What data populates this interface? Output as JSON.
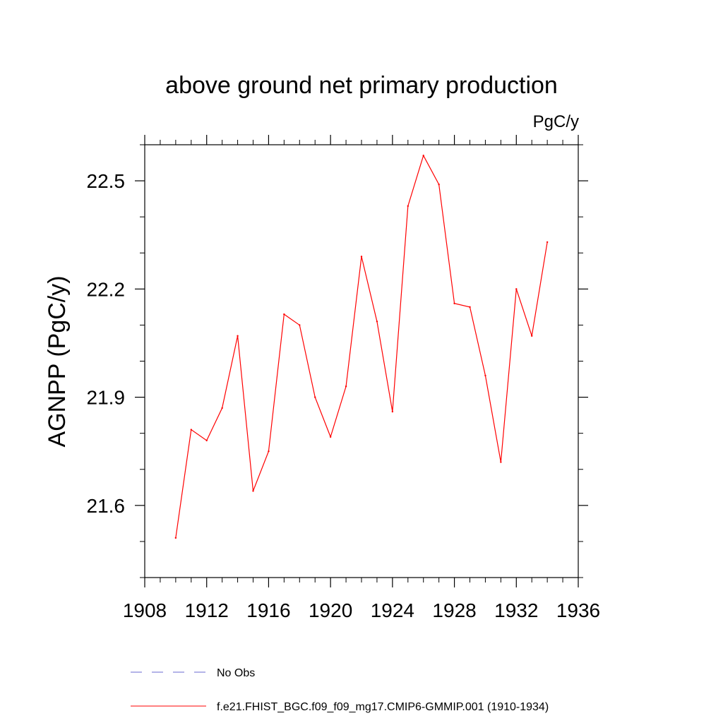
{
  "chart_data": {
    "type": "line",
    "title": "above ground net primary production",
    "units_label": "PgC/y",
    "xlabel": "",
    "ylabel": "AGNPP  (PgC/y)",
    "xlim": [
      1908,
      1936
    ],
    "ylim": [
      21.4,
      22.6
    ],
    "x_ticks": [
      1908,
      1912,
      1916,
      1920,
      1924,
      1928,
      1932,
      1936
    ],
    "y_ticks": [
      "21.6",
      "21.9",
      "22.2",
      "22.5"
    ],
    "y_minor_step": 0.1,
    "x_minor_step": 1,
    "series": [
      {
        "name": "f.e21.FHIST_BGC.f09_f09_mg17.CMIP6-GMMIP.001 (1910-1934)",
        "color": "#ff0000",
        "style": "solid",
        "x": [
          1910,
          1911,
          1912,
          1913,
          1914,
          1915,
          1916,
          1917,
          1918,
          1919,
          1920,
          1921,
          1922,
          1923,
          1924,
          1925,
          1926,
          1927,
          1928,
          1929,
          1930,
          1931,
          1932,
          1933,
          1934
        ],
        "values": [
          21.51,
          21.81,
          21.78,
          21.87,
          22.07,
          21.64,
          21.75,
          22.13,
          22.1,
          21.9,
          21.79,
          21.93,
          22.29,
          22.11,
          21.86,
          22.43,
          22.57,
          22.49,
          22.16,
          22.15,
          21.96,
          21.72,
          22.2,
          22.07,
          22.33
        ]
      }
    ],
    "legend": [
      {
        "label": "No Obs",
        "color": "#6a6ad0",
        "style": "dashed"
      },
      {
        "label": "f.e21.FHIST_BGC.f09_f09_mg17.CMIP6-GMMIP.001 (1910-1934)",
        "color": "#ff0000",
        "style": "solid"
      }
    ],
    "legend_position": "bottom-left"
  }
}
